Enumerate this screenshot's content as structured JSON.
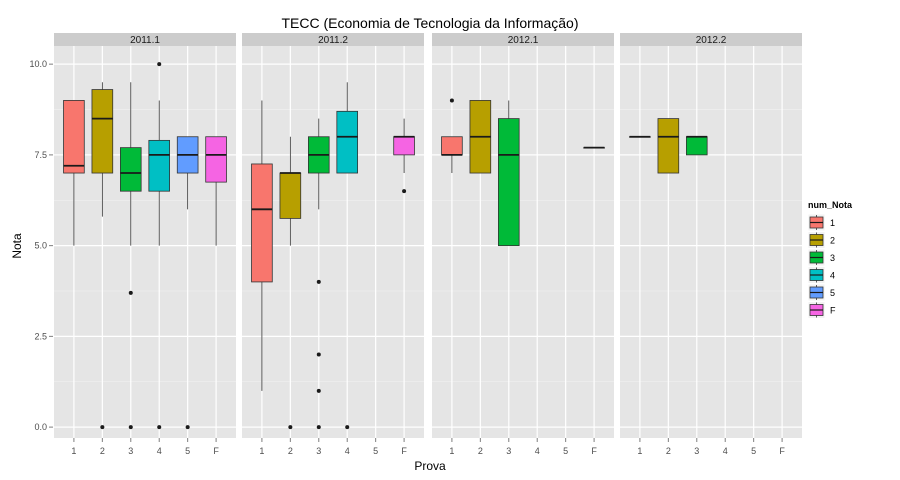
{
  "chart_data": {
    "type": "boxplot",
    "title": "TECC (Economia de Tecnologia da Informação)",
    "xlabel": "Prova",
    "ylabel": "Nota",
    "ylim": [
      -0.3,
      10.5
    ],
    "yticks": [
      "0.0",
      "2.5",
      "5.0",
      "7.5",
      "10.0"
    ],
    "ytick_values": [
      0,
      2.5,
      5,
      7.5,
      10
    ],
    "categories": [
      "1",
      "2",
      "3",
      "4",
      "5",
      "F"
    ],
    "legend": {
      "title": "num_Nota",
      "position": "right",
      "entries": [
        "1",
        "2",
        "3",
        "4",
        "5",
        "F"
      ]
    },
    "colors": {
      "1": "#F8766D",
      "2": "#B79F00",
      "3": "#00BA38",
      "4": "#00BFC4",
      "5": "#619CFF",
      "F": "#F564E3"
    },
    "grid": true,
    "panels": [
      {
        "name": "2011.1",
        "boxes": [
          {
            "cat": "1",
            "min": 5.0,
            "q1": 7.0,
            "median": 7.2,
            "q3": 9.0,
            "max": 9.0,
            "outliers": []
          },
          {
            "cat": "2",
            "min": 5.8,
            "q1": 7.0,
            "median": 8.5,
            "q3": 9.3,
            "max": 9.5,
            "outliers": [
              0
            ]
          },
          {
            "cat": "3",
            "min": 5.0,
            "q1": 6.5,
            "median": 7.0,
            "q3": 7.7,
            "max": 9.5,
            "outliers": [
              3.7,
              0
            ]
          },
          {
            "cat": "4",
            "min": 5.0,
            "q1": 6.5,
            "median": 7.5,
            "q3": 7.9,
            "max": 9.0,
            "outliers": [
              10.0,
              0
            ]
          },
          {
            "cat": "5",
            "min": 6.0,
            "q1": 7.0,
            "median": 7.5,
            "q3": 8.0,
            "max": 8.0,
            "outliers": [
              0
            ]
          },
          {
            "cat": "F",
            "min": 5.0,
            "q1": 6.75,
            "median": 7.5,
            "q3": 8.0,
            "max": 8.0,
            "outliers": []
          }
        ]
      },
      {
        "name": "2011.2",
        "boxes": [
          {
            "cat": "1",
            "min": 1.0,
            "q1": 4.0,
            "median": 6.0,
            "q3": 7.25,
            "max": 9.0,
            "outliers": []
          },
          {
            "cat": "2",
            "min": 5.0,
            "q1": 5.75,
            "median": 7.0,
            "q3": 7.0,
            "max": 8.0,
            "outliers": [
              0
            ]
          },
          {
            "cat": "3",
            "min": 6.0,
            "q1": 7.0,
            "median": 7.5,
            "q3": 8.0,
            "max": 8.5,
            "outliers": [
              4.0,
              2.0,
              1.0,
              0
            ]
          },
          {
            "cat": "4",
            "min": 7.0,
            "q1": 7.0,
            "median": 8.0,
            "q3": 8.7,
            "max": 9.5,
            "outliers": [
              0
            ]
          },
          {
            "cat": "F",
            "min": 7.0,
            "q1": 7.5,
            "median": 8.0,
            "q3": 8.0,
            "max": 8.5,
            "outliers": [
              6.5
            ]
          }
        ]
      },
      {
        "name": "2012.1",
        "boxes": [
          {
            "cat": "1",
            "min": 7.0,
            "q1": 7.5,
            "median": 7.5,
            "q3": 8.0,
            "max": 8.0,
            "outliers": [
              9.0
            ]
          },
          {
            "cat": "2",
            "min": 7.0,
            "q1": 7.0,
            "median": 8.0,
            "q3": 9.0,
            "max": 9.0,
            "outliers": []
          },
          {
            "cat": "3",
            "min": 5.0,
            "q1": 5.0,
            "median": 7.5,
            "q3": 8.5,
            "max": 9.0,
            "outliers": []
          },
          {
            "cat": "F",
            "min": 7.7,
            "q1": 7.7,
            "median": 7.7,
            "q3": 7.7,
            "max": 7.7,
            "outliers": []
          }
        ]
      },
      {
        "name": "2012.2",
        "boxes": [
          {
            "cat": "1",
            "min": 8.0,
            "q1": 8.0,
            "median": 8.0,
            "q3": 8.0,
            "max": 8.0,
            "outliers": []
          },
          {
            "cat": "2",
            "min": 7.0,
            "q1": 7.0,
            "median": 8.0,
            "q3": 8.5,
            "max": 8.5,
            "outliers": []
          },
          {
            "cat": "3",
            "min": 7.5,
            "q1": 7.5,
            "median": 8.0,
            "q3": 8.0,
            "max": 8.0,
            "outliers": []
          }
        ]
      }
    ]
  }
}
